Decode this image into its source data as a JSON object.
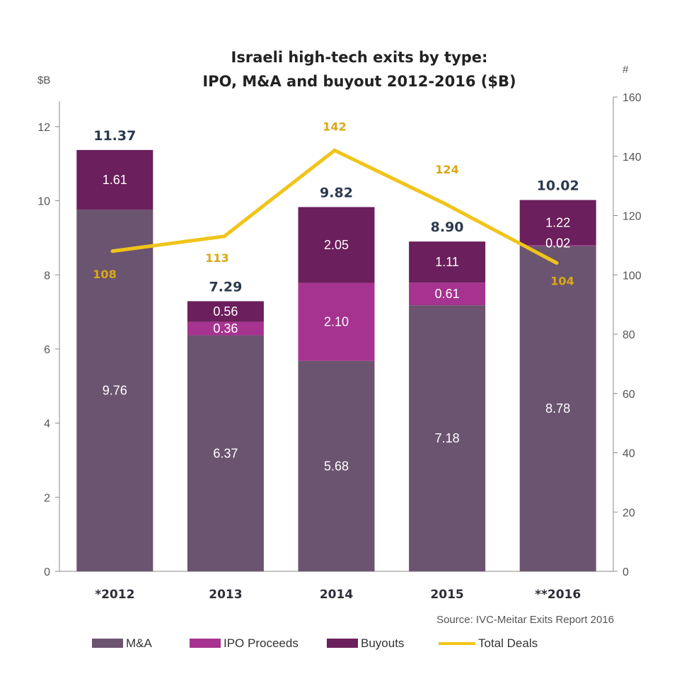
{
  "chart_data": {
    "type": "bar",
    "subtype": "stacked bar with line on secondary axis",
    "title_line1": "Israeli high-tech exits by type:",
    "title_line2": "IPO, M&A and buyout 2012-2016 ($B)",
    "y_left_unit": "$B",
    "y_right_unit": "#",
    "y_left_ticks": [
      "0",
      "2",
      "4",
      "6",
      "8",
      "10",
      "12"
    ],
    "y_right_ticks": [
      "0",
      "20",
      "40",
      "60",
      "80",
      "100",
      "120",
      "140",
      "160"
    ],
    "ylim_left": [
      0,
      12.8
    ],
    "ylim_right": [
      0,
      160
    ],
    "categories": [
      "*2012",
      "2013",
      "2014",
      "2015",
      "**2016"
    ],
    "series": [
      {
        "name": "M&A",
        "color": "#6b5470",
        "values": [
          9.76,
          6.37,
          5.68,
          7.18,
          8.78
        ],
        "labels": [
          "9.76",
          "6.37",
          "5.68",
          "7.18",
          "8.78"
        ]
      },
      {
        "name": "IPO Proceeds",
        "color": "#a5338f",
        "values": [
          0,
          0.36,
          2.1,
          0.61,
          0.02
        ],
        "labels": [
          "",
          "0.36",
          "2.10",
          "0.61",
          "0.02"
        ]
      },
      {
        "name": "Buyouts",
        "color": "#6b1f5c",
        "values": [
          1.61,
          0.56,
          2.05,
          1.11,
          1.22
        ],
        "labels": [
          "1.61",
          "0.56",
          "2.05",
          "1.11",
          "1.22"
        ]
      }
    ],
    "totals": [
      "11.37",
      "7.29",
      "9.82",
      "8.90",
      "10.02"
    ],
    "line": {
      "name": "Total Deals",
      "color": "#f0c419",
      "label_color": "#d9a814",
      "values": [
        108,
        113,
        142,
        124,
        104
      ],
      "labels": [
        "108",
        "113",
        "142",
        "124",
        "104"
      ]
    },
    "source": "Source: IVC-Meitar Exits Report 2016",
    "legend_position": "bottom",
    "grid": false
  }
}
